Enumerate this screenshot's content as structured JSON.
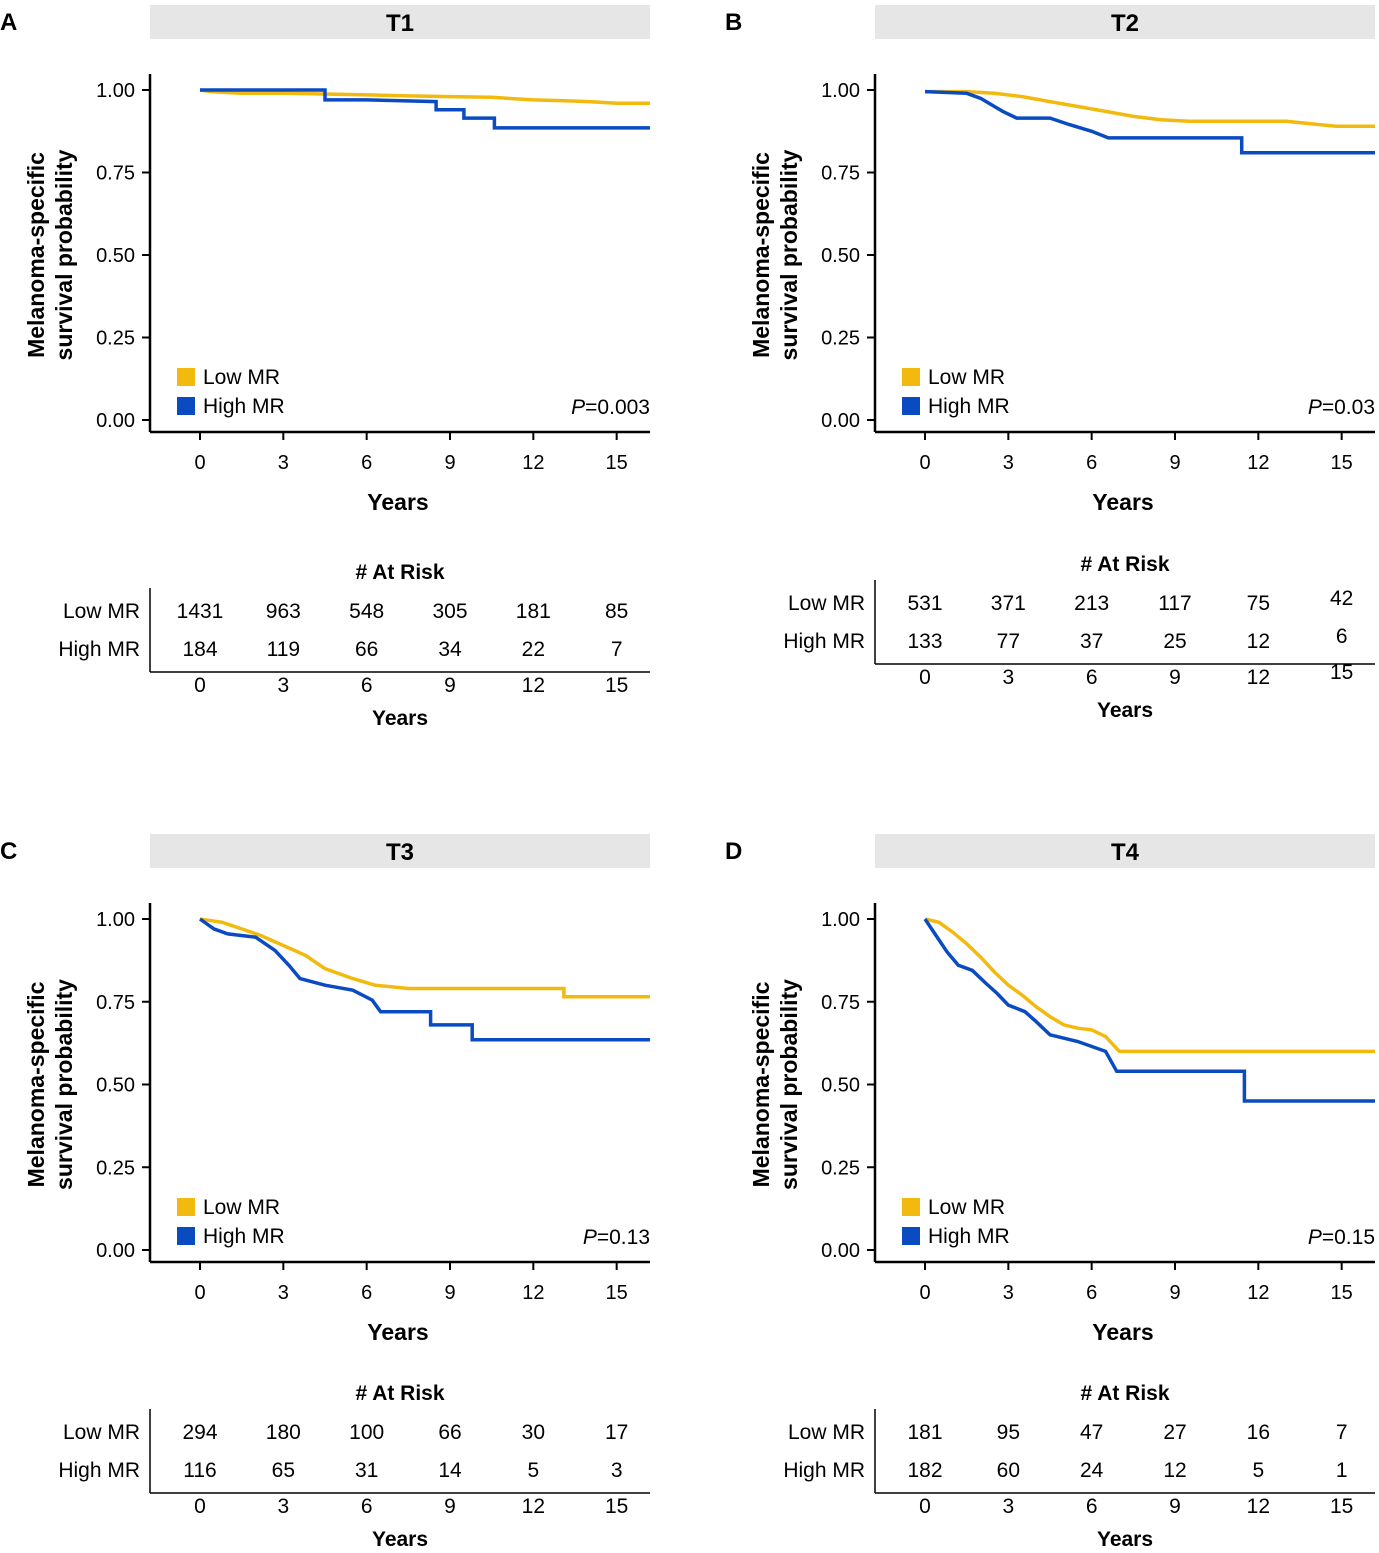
{
  "colors": {
    "low": "#F2BA0E",
    "high": "#0A4BC2",
    "strip": "#E6E6E6"
  },
  "chart_data": [
    {
      "panel": "A",
      "title": "T1",
      "type": "line",
      "xlabel": "Years",
      "ylabel_line1": "Melanoma-specific",
      "ylabel_line2": "survival probability",
      "xlim": [
        -1.8,
        16.2
      ],
      "ylim": [
        0,
        1
      ],
      "xticks": [
        "0",
        "3",
        "6",
        "9",
        "12",
        "15"
      ],
      "yticks": [
        "0.00",
        "0.25",
        "0.50",
        "0.75",
        "1.00"
      ],
      "pvalue_label": "P",
      "pvalue_text": "=0.003",
      "series": [
        {
          "name": "Low MR",
          "key": "low",
          "points": [
            [
              0,
              1.0
            ],
            [
              0.4,
              0.995
            ],
            [
              1.5,
              0.99
            ],
            [
              3,
              0.99
            ],
            [
              4.5,
              0.988
            ],
            [
              6,
              0.985
            ],
            [
              7.5,
              0.982
            ],
            [
              9,
              0.98
            ],
            [
              10.5,
              0.978
            ],
            [
              12,
              0.97
            ],
            [
              13,
              0.968
            ],
            [
              14,
              0.965
            ],
            [
              15,
              0.96
            ],
            [
              16.2,
              0.96
            ]
          ]
        },
        {
          "name": "High MR",
          "key": "high",
          "points": [
            [
              0,
              1.0
            ],
            [
              4.5,
              1.0
            ],
            [
              4.5,
              0.97
            ],
            [
              6,
              0.97
            ],
            [
              8.5,
              0.965
            ],
            [
              8.5,
              0.94
            ],
            [
              9.5,
              0.94
            ],
            [
              9.5,
              0.915
            ],
            [
              10.6,
              0.915
            ],
            [
              10.6,
              0.885
            ],
            [
              12,
              0.885
            ],
            [
              16.2,
              0.885
            ]
          ]
        }
      ],
      "risk": {
        "title": "# At Risk",
        "xlabel": "Years",
        "rows": [
          {
            "label": "Low MR",
            "values": [
              "1431",
              "963",
              "548",
              "305",
              "181",
              "85"
            ]
          },
          {
            "label": "High MR",
            "values": [
              "184",
              "119",
              "66",
              "34",
              "22",
              "7"
            ]
          }
        ]
      }
    },
    {
      "panel": "B",
      "title": "T2",
      "type": "line",
      "xlabel": "Years",
      "ylabel_line1": "Melanoma-specific",
      "ylabel_line2": "survival probability",
      "xlim": [
        -1.8,
        16.2
      ],
      "ylim": [
        0,
        1
      ],
      "xticks": [
        "0",
        "3",
        "6",
        "9",
        "12",
        "15"
      ],
      "yticks": [
        "0.00",
        "0.25",
        "0.50",
        "0.75",
        "1.00"
      ],
      "pvalue_label": "P",
      "pvalue_text": "=0.03",
      "series": [
        {
          "name": "Low MR",
          "key": "low",
          "points": [
            [
              0,
              0.995
            ],
            [
              1.5,
              0.995
            ],
            [
              2.5,
              0.99
            ],
            [
              3.5,
              0.98
            ],
            [
              4.5,
              0.965
            ],
            [
              5.5,
              0.95
            ],
            [
              6.5,
              0.935
            ],
            [
              7.5,
              0.92
            ],
            [
              8.5,
              0.91
            ],
            [
              9.5,
              0.905
            ],
            [
              11,
              0.905
            ],
            [
              13,
              0.905
            ],
            [
              14.8,
              0.89
            ],
            [
              16.2,
              0.89
            ]
          ]
        },
        {
          "name": "High MR",
          "key": "high",
          "points": [
            [
              0,
              0.995
            ],
            [
              1.5,
              0.99
            ],
            [
              2.0,
              0.975
            ],
            [
              2.4,
              0.955
            ],
            [
              2.8,
              0.935
            ],
            [
              3.3,
              0.915
            ],
            [
              4.5,
              0.915
            ],
            [
              5.2,
              0.895
            ],
            [
              6.0,
              0.875
            ],
            [
              6.6,
              0.855
            ],
            [
              8.0,
              0.855
            ],
            [
              11.4,
              0.855
            ],
            [
              11.4,
              0.81
            ],
            [
              16.2,
              0.81
            ]
          ]
        }
      ],
      "risk": {
        "title": "# At Risk",
        "xlabel": "Years",
        "rows": [
          {
            "label": "Low MR",
            "values": [
              "531",
              "371",
              "213",
              "117",
              "75",
              "42"
            ]
          },
          {
            "label": "High MR",
            "values": [
              "133",
              "77",
              "37",
              "25",
              "12",
              "6"
            ]
          }
        ]
      }
    },
    {
      "panel": "C",
      "title": "T3",
      "type": "line",
      "xlabel": "Years",
      "ylabel_line1": "Melanoma-specific",
      "ylabel_line2": "survival probability",
      "xlim": [
        -1.8,
        16.2
      ],
      "ylim": [
        0,
        1
      ],
      "xticks": [
        "0",
        "3",
        "6",
        "9",
        "12",
        "15"
      ],
      "yticks": [
        "0.00",
        "0.25",
        "0.50",
        "0.75",
        "1.00"
      ],
      "pvalue_label": "P",
      "pvalue_text": "=0.13",
      "series": [
        {
          "name": "Low MR",
          "key": "low",
          "points": [
            [
              0,
              1.0
            ],
            [
              0.8,
              0.99
            ],
            [
              1.5,
              0.97
            ],
            [
              2.2,
              0.95
            ],
            [
              3,
              0.92
            ],
            [
              3.8,
              0.89
            ],
            [
              4.5,
              0.85
            ],
            [
              5.5,
              0.82
            ],
            [
              6.3,
              0.8
            ],
            [
              7.5,
              0.79
            ],
            [
              9,
              0.79
            ],
            [
              11,
              0.79
            ],
            [
              13.1,
              0.79
            ],
            [
              13.1,
              0.765
            ],
            [
              16.2,
              0.765
            ]
          ]
        },
        {
          "name": "High MR",
          "key": "high",
          "points": [
            [
              0,
              1.0
            ],
            [
              0.5,
              0.97
            ],
            [
              1.0,
              0.955
            ],
            [
              2.0,
              0.945
            ],
            [
              2.7,
              0.905
            ],
            [
              3.2,
              0.86
            ],
            [
              3.6,
              0.82
            ],
            [
              4.5,
              0.8
            ],
            [
              5.5,
              0.785
            ],
            [
              6.2,
              0.755
            ],
            [
              6.5,
              0.72
            ],
            [
              8.3,
              0.72
            ],
            [
              8.3,
              0.68
            ],
            [
              9.8,
              0.68
            ],
            [
              9.8,
              0.635
            ],
            [
              16.2,
              0.635
            ]
          ]
        }
      ],
      "risk": {
        "title": "# At Risk",
        "xlabel": "Years",
        "rows": [
          {
            "label": "Low MR",
            "values": [
              "294",
              "180",
              "100",
              "66",
              "30",
              "17"
            ]
          },
          {
            "label": "High MR",
            "values": [
              "116",
              "65",
              "31",
              "14",
              "5",
              "3"
            ]
          }
        ]
      }
    },
    {
      "panel": "D",
      "title": "T4",
      "type": "line",
      "xlabel": "Years",
      "ylabel_line1": "Melanoma-specific",
      "ylabel_line2": "survival probability",
      "xlim": [
        -1.8,
        16.2
      ],
      "ylim": [
        0,
        1
      ],
      "xticks": [
        "0",
        "3",
        "6",
        "9",
        "12",
        "15"
      ],
      "yticks": [
        "0.00",
        "0.25",
        "0.50",
        "0.75",
        "1.00"
      ],
      "pvalue_label": "P",
      "pvalue_text": "=0.15",
      "series": [
        {
          "name": "Low MR",
          "key": "low",
          "points": [
            [
              0,
              1.0
            ],
            [
              0.5,
              0.99
            ],
            [
              1.0,
              0.96
            ],
            [
              1.5,
              0.925
            ],
            [
              2,
              0.885
            ],
            [
              2.5,
              0.84
            ],
            [
              3,
              0.8
            ],
            [
              3.5,
              0.77
            ],
            [
              4,
              0.735
            ],
            [
              4.5,
              0.705
            ],
            [
              5,
              0.68
            ],
            [
              5.5,
              0.67
            ],
            [
              6,
              0.665
            ],
            [
              6.5,
              0.645
            ],
            [
              7,
              0.6
            ],
            [
              9,
              0.6
            ],
            [
              12,
              0.6
            ],
            [
              16.2,
              0.6
            ]
          ]
        },
        {
          "name": "High MR",
          "key": "high",
          "points": [
            [
              0,
              1.0
            ],
            [
              0.4,
              0.95
            ],
            [
              0.8,
              0.9
            ],
            [
              1.2,
              0.86
            ],
            [
              1.7,
              0.845
            ],
            [
              2.2,
              0.805
            ],
            [
              2.6,
              0.775
            ],
            [
              3,
              0.74
            ],
            [
              3.6,
              0.72
            ],
            [
              4,
              0.69
            ],
            [
              4.5,
              0.65
            ],
            [
              5.5,
              0.63
            ],
            [
              6.5,
              0.6
            ],
            [
              6.9,
              0.54
            ],
            [
              9,
              0.54
            ],
            [
              11.5,
              0.54
            ],
            [
              11.5,
              0.45
            ],
            [
              16.2,
              0.45
            ]
          ]
        }
      ],
      "risk": {
        "title": "# At Risk",
        "xlabel": "Years",
        "rows": [
          {
            "label": "Low MR",
            "values": [
              "181",
              "95",
              "47",
              "27",
              "16",
              "7"
            ]
          },
          {
            "label": "High MR",
            "values": [
              "182",
              "60",
              "24",
              "12",
              "5",
              "1"
            ]
          }
        ]
      }
    }
  ]
}
